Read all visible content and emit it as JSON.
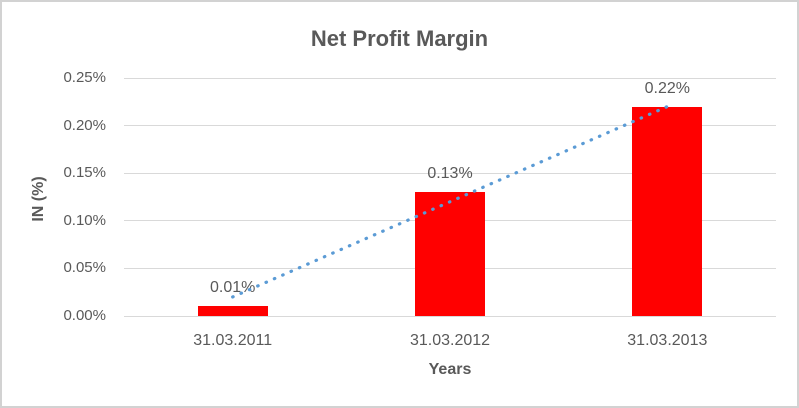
{
  "chart": {
    "title": "Net Profit Margin",
    "y_axis_title": "IN (%)",
    "x_axis_title": "Years"
  },
  "chart_data": {
    "type": "bar",
    "title": "Net Profit Margin",
    "xlabel": "Years",
    "ylabel": "IN (%)",
    "categories": [
      "31.03.2011",
      "31.03.2012",
      "31.03.2013"
    ],
    "values": [
      0.01,
      0.13,
      0.22
    ],
    "data_labels": [
      "0.01%",
      "0.13%",
      "0.22%"
    ],
    "ylim": [
      0,
      0.25
    ],
    "ytick_step": 0.05,
    "ytick_labels": [
      "0.00%",
      "0.05%",
      "0.10%",
      "0.15%",
      "0.20%",
      "0.25%"
    ],
    "grid": true,
    "legend": false,
    "bar_color": "#FF0000",
    "trendline": {
      "type": "linear",
      "style": "dotted",
      "color": "#5B9BD5",
      "start_value": 0.02,
      "end_value": 0.22
    },
    "colors": {
      "text": "#595959",
      "gridline": "#D9D9D9",
      "frame_border": "#D2D2D2",
      "background": "#FFFFFF"
    }
  }
}
